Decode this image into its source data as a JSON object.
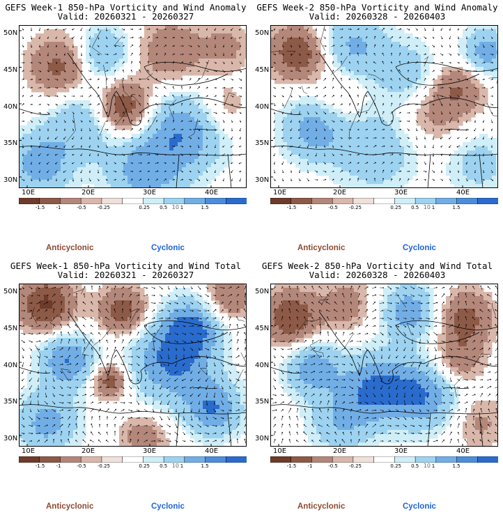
{
  "panels": [
    {
      "title": "GEFS Week-1 850-hPa Vorticity and Wind Anomaly",
      "valid": "Valid: 20260321 - 20260327"
    },
    {
      "title": "GEFS Week-2 850-hPa Vorticity and Wind Anomaly",
      "valid": "Valid: 20260328 - 20260403"
    },
    {
      "title": "GEFS Week-1 850-hPa Vorticity and Wind Total",
      "valid": "Valid: 20260321 - 20260327"
    },
    {
      "title": "GEFS Week-2 850-hPa Vorticity and Wind Total",
      "valid": "Valid: 20260328 - 20260403"
    }
  ],
  "lat_labels": [
    "50N",
    "45N",
    "40N",
    "35N",
    "30N"
  ],
  "lon_labels": [
    "10E",
    "20E",
    "30E",
    "40E"
  ],
  "colorbar": {
    "labels": [
      "-1.5",
      "-1",
      "-0.5",
      "-0.25",
      "0.25",
      "0.5",
      "1",
      "1.5"
    ],
    "mid_label": "10",
    "colors": [
      "#6f3b2a",
      "#8d5a47",
      "#b3877a",
      "#d9b7aa",
      "#efe0da",
      "#ffffff",
      "#cfeef8",
      "#9dd3f0",
      "#72aee6",
      "#4c8ddb",
      "#2a6ccd"
    ]
  },
  "legend": {
    "anticyclonic": "Anticyclonic",
    "cyclonic": "Cyclonic"
  },
  "colors": {
    "anticyclonic": "#8c4a32",
    "cyclonic": "#1f64d6"
  }
}
